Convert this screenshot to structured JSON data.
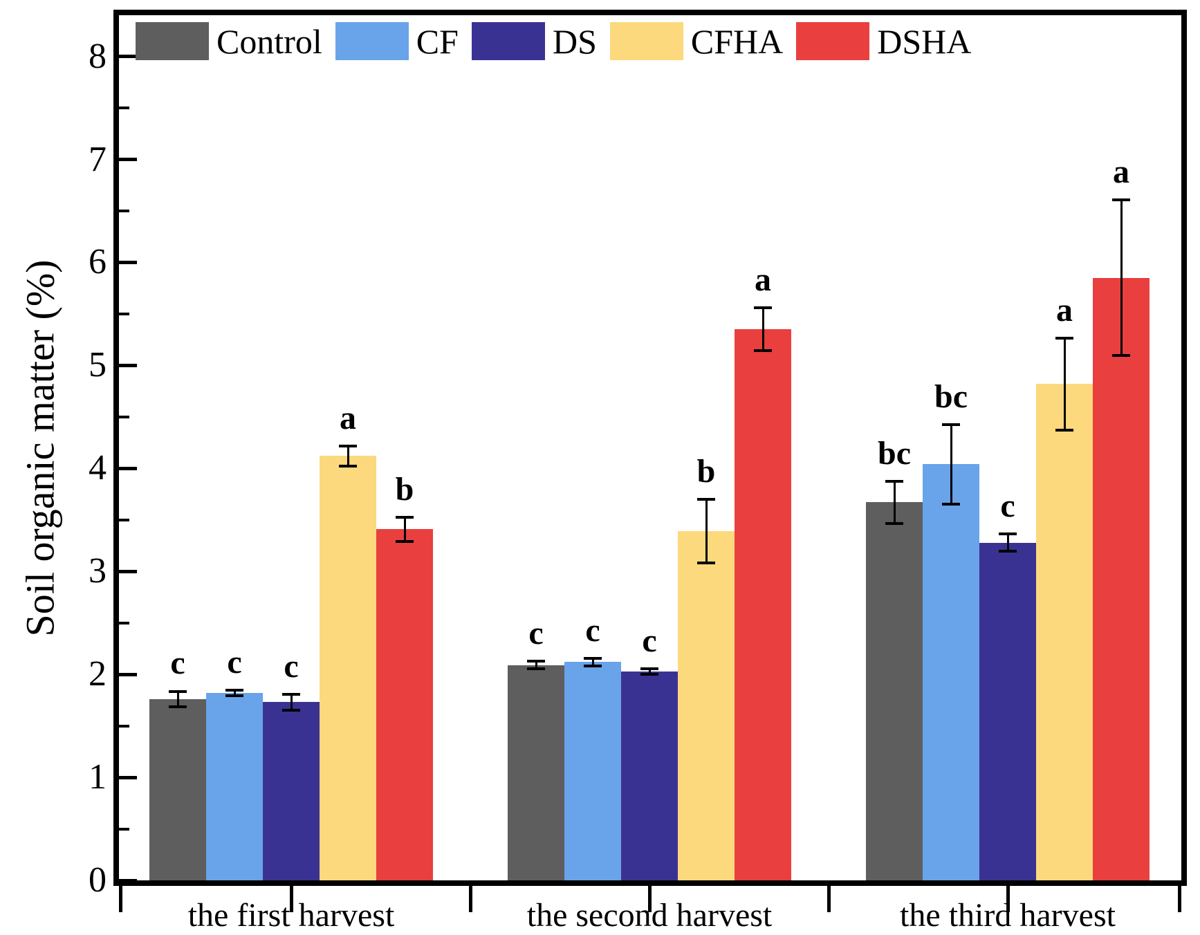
{
  "figure": {
    "y_axis_title": "Soil organic matter (%)"
  },
  "colors": {
    "axis": "#000000",
    "text": "#000000",
    "background": "#ffffff"
  },
  "chart_data": {
    "type": "bar",
    "title": "",
    "xlabel": "",
    "ylabel": "Soil organic matter (%)",
    "ylim": [
      0,
      8.4
    ],
    "yticks": [
      0,
      1,
      2,
      3,
      4,
      5,
      6,
      7,
      8
    ],
    "minor_tick_step": 0.5,
    "grid": false,
    "legend_position": "top-left-inside",
    "categories": [
      "the first harvest",
      "the second harvest",
      "the third harvest"
    ],
    "series": [
      {
        "name": "Control",
        "color": "#5e5e5e",
        "values": [
          1.76,
          2.09,
          3.67
        ],
        "errors": [
          0.09,
          0.05,
          0.22
        ],
        "letters": [
          "c",
          "c",
          "bc"
        ]
      },
      {
        "name": "CF",
        "color": "#69a3ea",
        "values": [
          1.82,
          2.12,
          4.04
        ],
        "errors": [
          0.04,
          0.05,
          0.4
        ],
        "letters": [
          "c",
          "c",
          "bc"
        ]
      },
      {
        "name": "DS",
        "color": "#3a3292",
        "values": [
          1.73,
          2.03,
          3.28
        ],
        "errors": [
          0.09,
          0.04,
          0.1
        ],
        "letters": [
          "c",
          "c",
          "c"
        ]
      },
      {
        "name": "CFHA",
        "color": "#fcd97d",
        "values": [
          4.12,
          3.39,
          4.82
        ],
        "errors": [
          0.11,
          0.32,
          0.46
        ],
        "letters": [
          "a",
          "b",
          "a"
        ]
      },
      {
        "name": "DSHA",
        "color": "#e93f3f",
        "values": [
          3.41,
          5.35,
          5.85
        ],
        "errors": [
          0.13,
          0.22,
          0.77
        ],
        "letters": [
          "b",
          "a",
          "a"
        ]
      }
    ]
  }
}
